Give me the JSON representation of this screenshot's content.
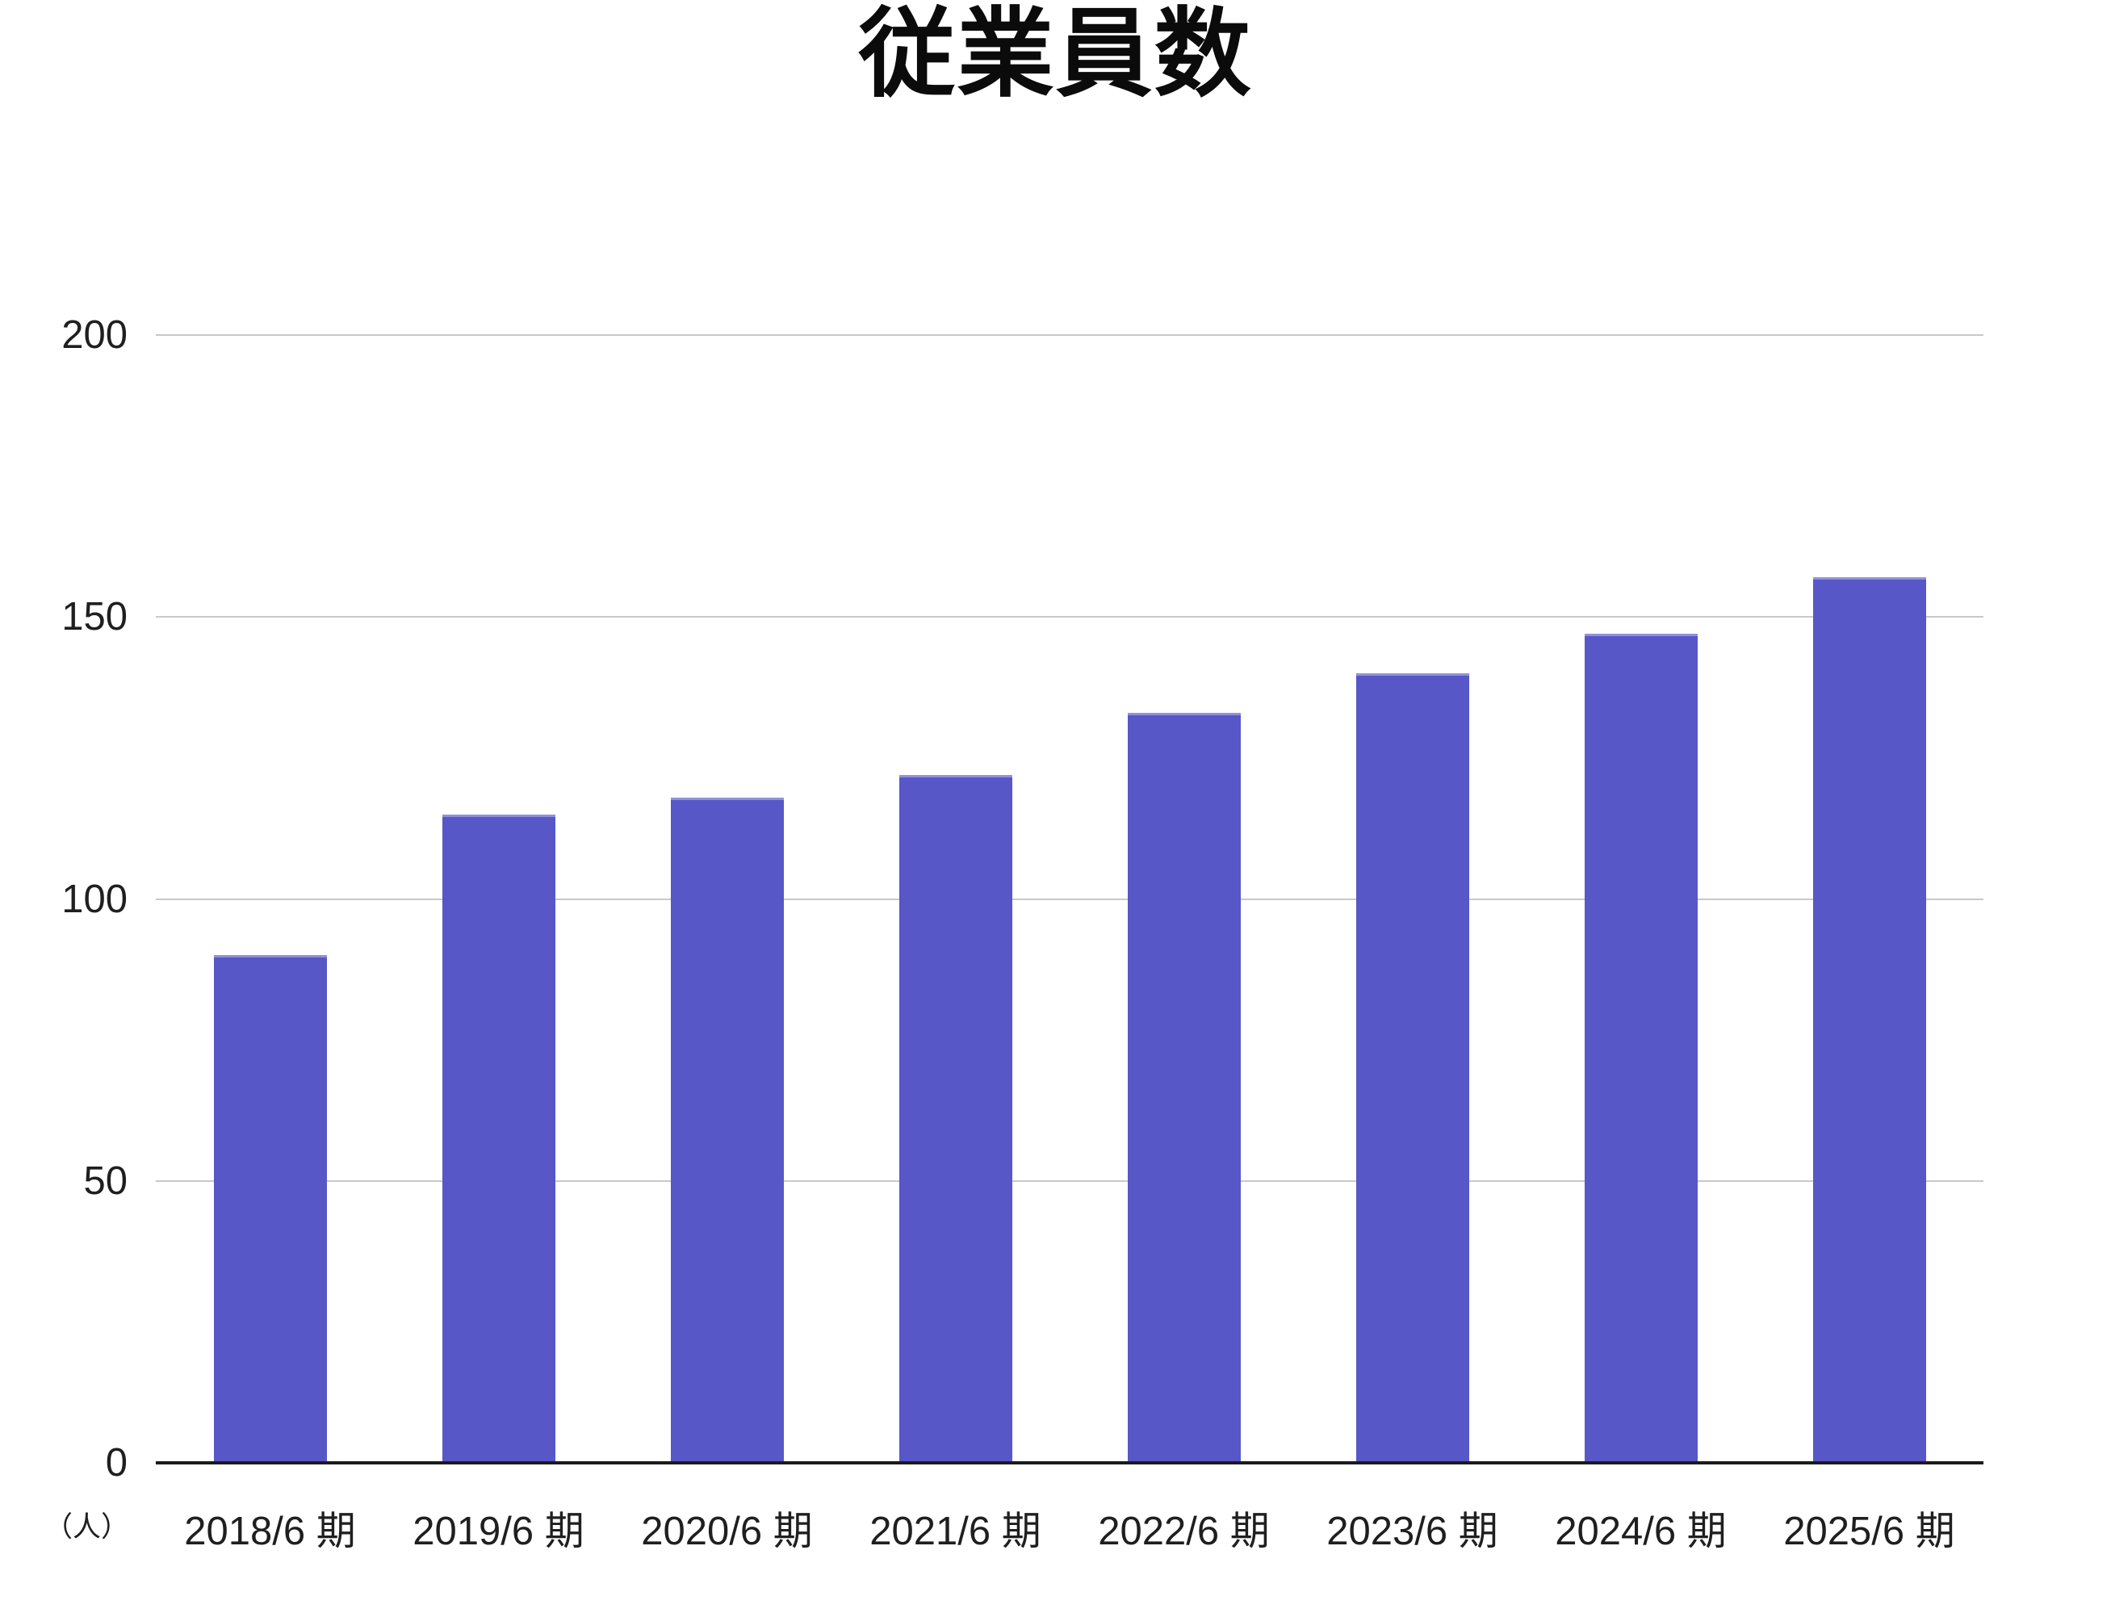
{
  "chart_data": {
    "type": "bar",
    "title": "従業員数",
    "unit_label": "（人）",
    "categories": [
      "2018/6 期",
      "2019/6 期",
      "2020/6 期",
      "2021/6 期",
      "2022/6 期",
      "2023/6 期",
      "2024/6 期",
      "2025/6 期"
    ],
    "values": [
      90,
      115,
      118,
      122,
      133,
      140,
      147,
      157
    ],
    "xlabel": "",
    "ylabel": "人",
    "ylim": [
      0,
      200
    ],
    "yticks": [
      0,
      50,
      100,
      150,
      200
    ],
    "grid": "horizontal",
    "legend_position": "none",
    "bar_color": "#5757C8",
    "gridline_color": "#C9C9C9",
    "axis_color": "#1B1B1B",
    "text_color": "#1F1F1F"
  }
}
